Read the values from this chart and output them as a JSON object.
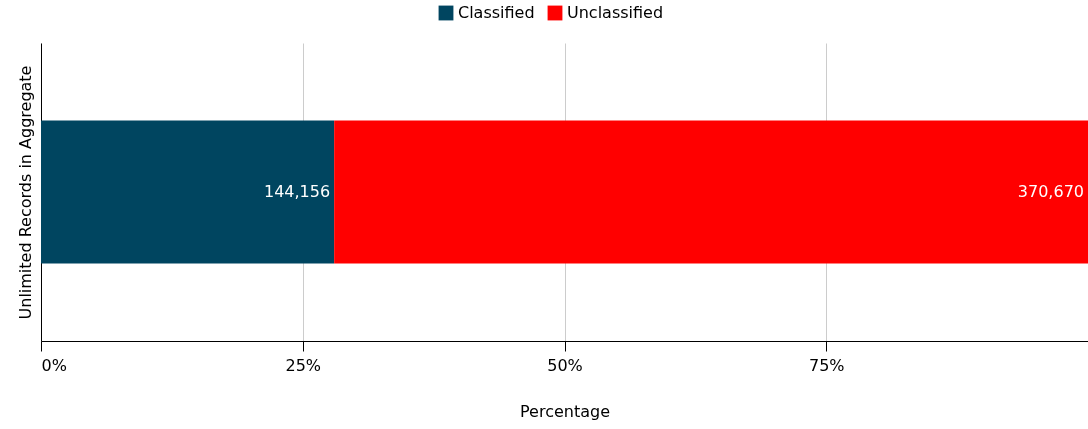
{
  "chart_data": {
    "type": "bar",
    "orientation": "horizontal",
    "stacked": true,
    "ylabel": "Unlimited Records in Aggregate",
    "xlabel": "Percentage",
    "categories": [
      null
    ],
    "series": [
      {
        "name": "Classified",
        "color": "#004560",
        "values": [
          28.0
        ]
      },
      {
        "name": "Unclassified",
        "color": "#ff0000",
        "values": [
          72.0
        ]
      }
    ],
    "annotations": [
      {
        "text": "144,156",
        "x": 28.0
      },
      {
        "text": "370,670",
        "x": 100
      }
    ],
    "xlim": [
      0,
      100
    ],
    "xticks": [
      {
        "value": 0,
        "label": "0%"
      },
      {
        "value": 25,
        "label": "25%"
      },
      {
        "value": 50,
        "label": "50%"
      },
      {
        "value": 75,
        "label": "75%"
      },
      {
        "value": 100,
        "label": null
      }
    ],
    "grid": "x",
    "legend": "top"
  }
}
